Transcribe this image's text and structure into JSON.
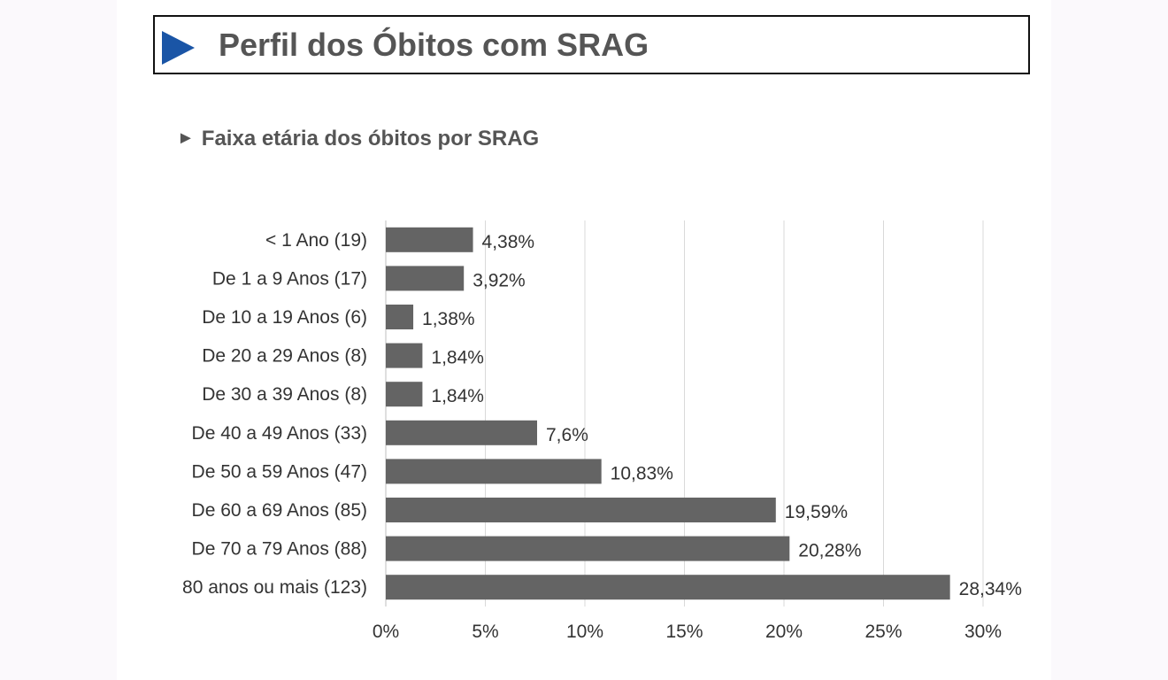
{
  "header": {
    "title": "Perfil dos Óbitos com SRAG",
    "subtitle": "Faixa etária dos óbitos por SRAG",
    "subtitle_marker": "►"
  },
  "colors": {
    "bar": "#646464",
    "title_arrow": "#1a55a6",
    "grid": "#d9d9d9",
    "text": "#333333"
  },
  "icons": {
    "title_marker": "blue-triangle-icon",
    "subtitle_marker": "black-triangle-icon"
  },
  "chart_data": {
    "type": "bar",
    "orientation": "horizontal",
    "title": "Faixa etária dos óbitos por SRAG",
    "xlabel": "",
    "ylabel": "",
    "categories": [
      "< 1 Ano (19)",
      "De 1 a 9 Anos (17)",
      "De 10 a 19 Anos (6)",
      "De 20 a 29 Anos (8)",
      "De 30 a 39 Anos (8)",
      "De 40 a 49 Anos (33)",
      "De 50 a 59 Anos (47)",
      "De 60 a 69 Anos (85)",
      "De 70 a 79 Anos (88)",
      "80 anos ou mais (123)"
    ],
    "values": [
      4.38,
      3.92,
      1.38,
      1.84,
      1.84,
      7.6,
      10.83,
      19.59,
      20.28,
      28.34
    ],
    "value_labels": [
      "4,38%",
      "3,92%",
      "1,38%",
      "1,84%",
      "1,84%",
      "7,6%",
      "10,83%",
      "19,59%",
      "20,28%",
      "28,34%"
    ],
    "xlim": [
      0,
      30
    ],
    "xticks": [
      0,
      5,
      10,
      15,
      20,
      25,
      30
    ],
    "xtick_labels": [
      "0%",
      "5%",
      "10%",
      "15%",
      "20%",
      "25%",
      "30%"
    ],
    "grid": "vertical",
    "legend": "none"
  }
}
